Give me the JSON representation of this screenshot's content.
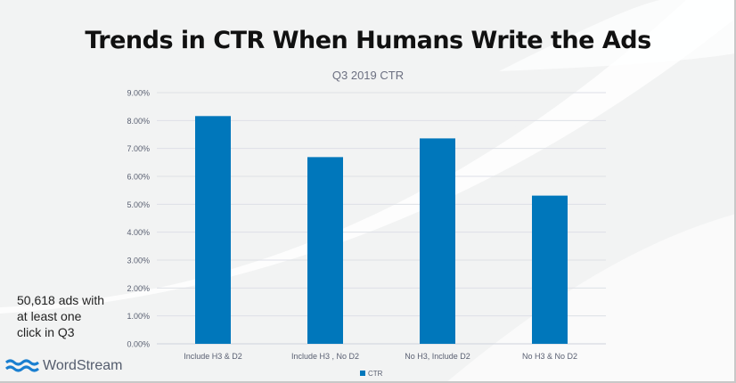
{
  "title": "Trends in CTR When Humans Write the Ads",
  "note": "50,618 ads with at least one click in Q3",
  "logo": {
    "text": "WordStream",
    "icon": "wave-icon",
    "color": "#1a7fd0"
  },
  "chart_data": {
    "type": "bar",
    "title": "Q3 2019 CTR",
    "categories": [
      "Include H3 & D2",
      "Include H3 , No D2",
      "No H3, Include D2",
      "No H3 & No D2"
    ],
    "series": [
      {
        "name": "CTR",
        "values": [
          8.16,
          6.69,
          7.36,
          5.31
        ],
        "color": "#0077bb"
      }
    ],
    "ylim": [
      0,
      9
    ],
    "yticks": [
      "0.00%",
      "1.00%",
      "2.00%",
      "3.00%",
      "4.00%",
      "5.00%",
      "6.00%",
      "7.00%",
      "8.00%",
      "9.00%"
    ],
    "grid": true,
    "legend": "bottom",
    "xlabel": "",
    "ylabel": ""
  }
}
